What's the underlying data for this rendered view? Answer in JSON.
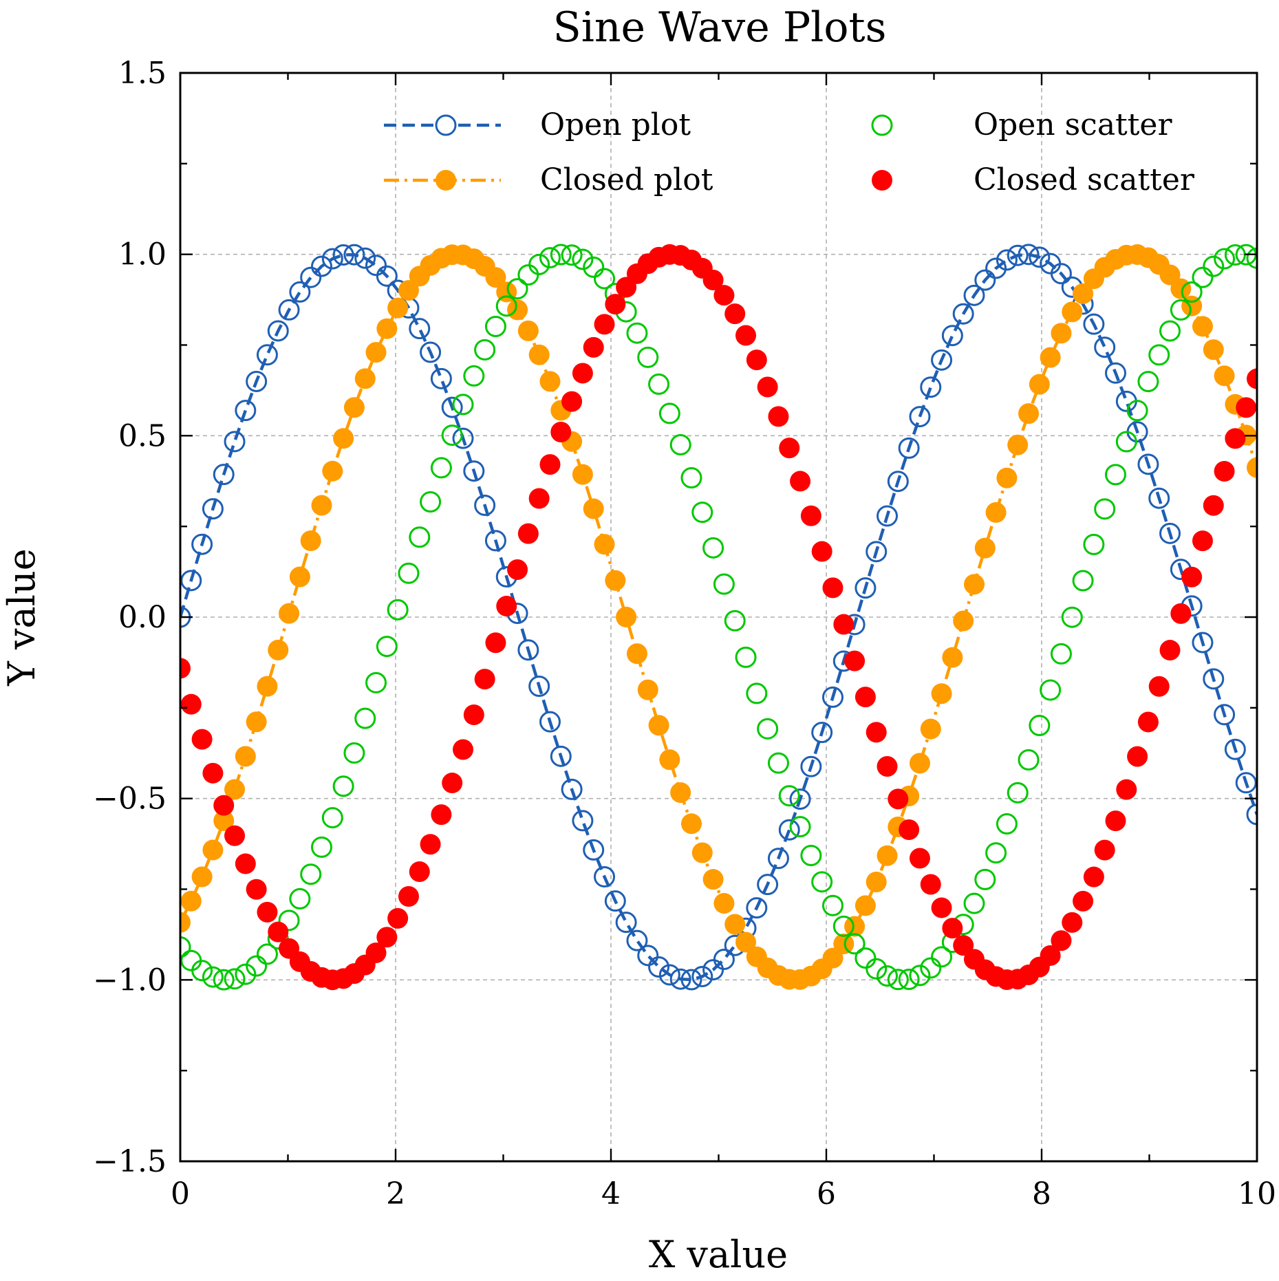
{
  "chart_data": {
    "type": "scatter",
    "title": "Sine Wave Plots",
    "xlabel": "X value",
    "ylabel": "Y value",
    "xlim": [
      0,
      10
    ],
    "ylim": [
      -1.5,
      1.5
    ],
    "grid": true,
    "legend_placement": "top",
    "x_ticks": [
      0,
      2,
      4,
      6,
      8,
      10
    ],
    "x_tick_labels": [
      "0",
      "2",
      "4",
      "6",
      "8",
      "10"
    ],
    "x_minor_ticks": [
      1,
      3,
      5,
      7,
      9
    ],
    "y_ticks": [
      -1.5,
      -1.0,
      -0.5,
      0.0,
      0.5,
      1.0,
      1.5
    ],
    "y_tick_labels": [
      "−1.5",
      "−1.0",
      "−0.5",
      "0.0",
      "0.5",
      "1.0",
      "1.5"
    ],
    "y_minor_ticks": [
      -1.25,
      -0.75,
      -0.25,
      0.25,
      0.75,
      1.25
    ],
    "x_sampling": {
      "start": 0,
      "stop": 10,
      "count": 100
    },
    "series": [
      {
        "name": "Open plot",
        "formula": "y = sin(x)",
        "phase": 0.0,
        "color": "#1f5fb4",
        "linestyle": "dashed",
        "marker": "open-circle"
      },
      {
        "name": "Closed plot",
        "formula": "y = sin(x - 1)",
        "phase": -1.0,
        "color": "#ff9c00",
        "linestyle": "dashdot",
        "marker": "filled-circle"
      },
      {
        "name": "Open scatter",
        "formula": "y = sin(x - 2)",
        "phase": -2.0,
        "color": "#00c800",
        "linestyle": "none",
        "marker": "open-circle"
      },
      {
        "name": "Closed scatter",
        "formula": "y = sin(x - 3)",
        "phase": -3.0,
        "color": "#ff0000",
        "linestyle": "none",
        "marker": "filled-circle"
      }
    ]
  }
}
